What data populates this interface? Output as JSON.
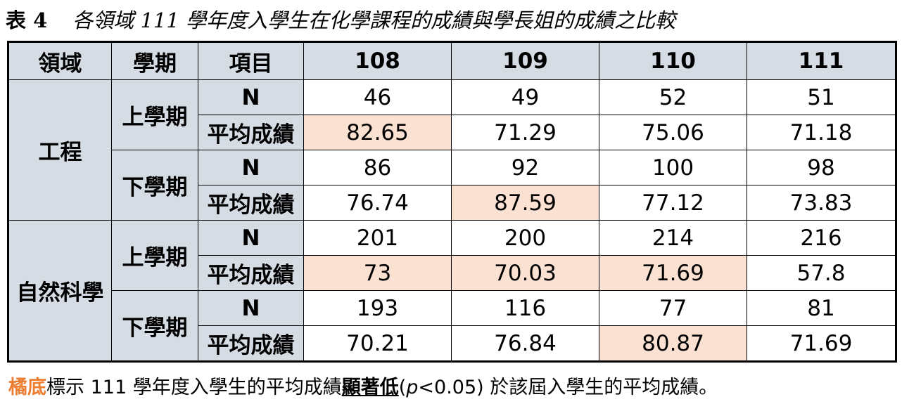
{
  "title": {
    "label": "表 4",
    "text": "各領域 111 學年度入學生在化學課程的成績與學長姐的成績之比較"
  },
  "table": {
    "header": [
      "領域",
      "學期",
      "項目",
      "108",
      "109",
      "110",
      "111"
    ],
    "groups": [
      {
        "field": "工程",
        "terms": [
          {
            "term": "上學期",
            "rows": [
              {
                "item": "N",
                "values": [
                  46,
                  49,
                  52,
                  51
                ],
                "highlighted": []
              },
              {
                "item": "平均成績",
                "values": [
                  82.65,
                  71.29,
                  75.06,
                  71.18
                ],
                "highlighted": [
                  0
                ]
              }
            ]
          },
          {
            "term": "下學期",
            "rows": [
              {
                "item": "N",
                "values": [
                  86,
                  92,
                  100,
                  98
                ],
                "highlighted": []
              },
              {
                "item": "平均成績",
                "values": [
                  76.74,
                  87.59,
                  77.12,
                  73.83
                ],
                "highlighted": [
                  1
                ]
              }
            ]
          }
        ]
      },
      {
        "field": "自然科學",
        "terms": [
          {
            "term": "上學期",
            "rows": [
              {
                "item": "N",
                "values": [
                  201,
                  200,
                  214,
                  216
                ],
                "highlighted": []
              },
              {
                "item": "平均成績",
                "values": [
                  73,
                  70.03,
                  71.69,
                  57.8
                ],
                "highlighted": [
                  0,
                  1,
                  2
                ]
              }
            ]
          },
          {
            "term": "下學期",
            "rows": [
              {
                "item": "N",
                "values": [
                  193,
                  116,
                  77,
                  81
                ],
                "highlighted": []
              },
              {
                "item": "平均成績",
                "values": [
                  70.21,
                  76.84,
                  80.87,
                  71.69
                ],
                "highlighted": [
                  2
                ]
              }
            ]
          }
        ]
      }
    ]
  },
  "note": {
    "marker": "橘底",
    "text": "標示 111 學年度入學生的平均成績",
    "emphasis": "顯著低",
    "open": "(",
    "variable": "p",
    "condition": "<0.05)",
    "rest": "於該屆入學生的平均成績。"
  }
}
